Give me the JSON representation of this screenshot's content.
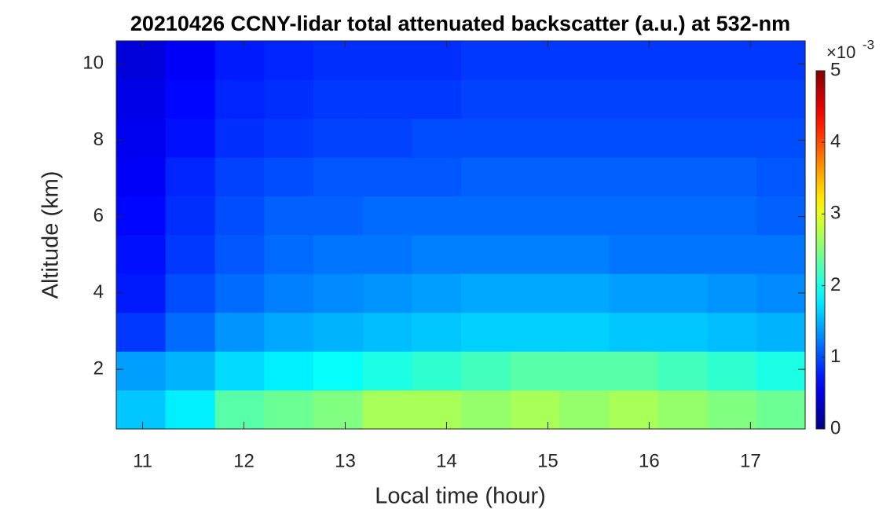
{
  "chart_data": {
    "type": "heatmap",
    "title": "20210426 CCNY-lidar total attenuated backscatter (a.u.) at 532-nm",
    "x_label": "Local time (hour)",
    "y_label": "Altitude (km)",
    "colormap": "jet",
    "colorbar_multiplier": "×10",
    "colorbar_exponent": "-3",
    "clim": [
      0,
      5
    ],
    "cticks": [
      0,
      1,
      2,
      3,
      4,
      5
    ],
    "xlim": [
      10.74,
      17.54
    ],
    "xticks": [
      11,
      12,
      13,
      14,
      15,
      16,
      17
    ],
    "ylim": [
      0.44,
      10.6
    ],
    "yticks": [
      2,
      4,
      6,
      8,
      10
    ],
    "x": [
      10.98,
      11.47,
      11.96,
      12.44,
      12.93,
      13.42,
      13.9,
      14.39,
      14.87,
      15.36,
      15.85,
      16.33,
      16.82,
      17.3
    ],
    "y": [
      0.95,
      1.97,
      2.98,
      4.0,
      5.02,
      6.03,
      7.05,
      8.06,
      9.08,
      10.1
    ],
    "z": [
      [
        1.6,
        1.8,
        2.3,
        2.4,
        2.5,
        2.7,
        2.7,
        2.6,
        2.7,
        2.6,
        2.7,
        2.6,
        2.5,
        2.4
      ],
      [
        1.4,
        1.5,
        1.7,
        1.8,
        1.9,
        2.0,
        2.1,
        2.2,
        2.3,
        2.3,
        2.3,
        2.2,
        2.1,
        2.0
      ],
      [
        0.9,
        1.15,
        1.35,
        1.45,
        1.5,
        1.55,
        1.6,
        1.65,
        1.65,
        1.65,
        1.6,
        1.6,
        1.55,
        1.5
      ],
      [
        0.75,
        1.0,
        1.15,
        1.25,
        1.3,
        1.35,
        1.4,
        1.45,
        1.45,
        1.45,
        1.4,
        1.4,
        1.35,
        1.3
      ],
      [
        0.7,
        0.9,
        1.05,
        1.15,
        1.2,
        1.2,
        1.25,
        1.25,
        1.25,
        1.25,
        1.2,
        1.2,
        1.2,
        1.2
      ],
      [
        0.65,
        0.85,
        1.0,
        1.1,
        1.1,
        1.15,
        1.15,
        1.15,
        1.15,
        1.15,
        1.15,
        1.15,
        1.15,
        1.1
      ],
      [
        0.6,
        0.8,
        0.95,
        1.0,
        1.05,
        1.05,
        1.05,
        1.1,
        1.1,
        1.1,
        1.1,
        1.1,
        1.1,
        1.05
      ],
      [
        0.55,
        0.7,
        0.85,
        0.9,
        0.95,
        0.95,
        1.0,
        1.0,
        1.0,
        1.0,
        1.0,
        1.0,
        1.0,
        1.0
      ],
      [
        0.5,
        0.65,
        0.8,
        0.85,
        0.9,
        0.9,
        0.9,
        0.95,
        0.95,
        0.95,
        0.95,
        0.95,
        0.95,
        0.95
      ],
      [
        0.45,
        0.6,
        0.75,
        0.8,
        0.85,
        0.85,
        0.85,
        0.9,
        0.9,
        0.9,
        0.9,
        0.9,
        0.9,
        0.9
      ]
    ]
  }
}
